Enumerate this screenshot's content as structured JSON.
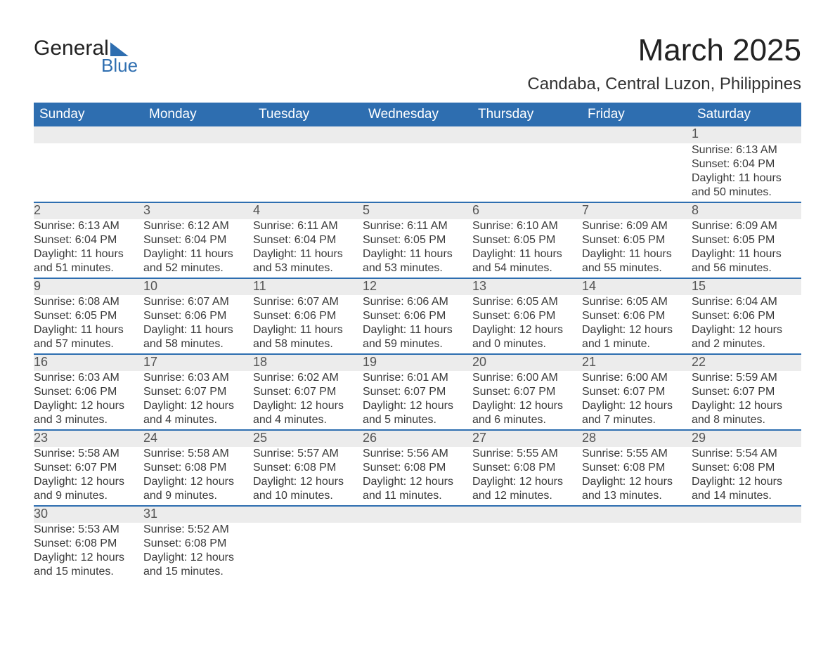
{
  "logo": {
    "line1": "General",
    "line2": "Blue"
  },
  "title": "March 2025",
  "location": "Candaba, Central Luzon, Philippines",
  "colors": {
    "header_blue": "#2e6eb0",
    "row_gray": "#ececec",
    "text": "#3a3a3a",
    "background": "#ffffff"
  },
  "typography": {
    "title_fontsize": 44,
    "location_fontsize": 24,
    "dayheader_fontsize": 19,
    "cell_fontsize": 16
  },
  "day_headers": [
    "Sunday",
    "Monday",
    "Tuesday",
    "Wednesday",
    "Thursday",
    "Friday",
    "Saturday"
  ],
  "weeks": [
    [
      null,
      null,
      null,
      null,
      null,
      null,
      {
        "n": "1",
        "sunrise": "6:13 AM",
        "sunset": "6:04 PM",
        "daylight": "11 hours and 50 minutes."
      }
    ],
    [
      {
        "n": "2",
        "sunrise": "6:13 AM",
        "sunset": "6:04 PM",
        "daylight": "11 hours and 51 minutes."
      },
      {
        "n": "3",
        "sunrise": "6:12 AM",
        "sunset": "6:04 PM",
        "daylight": "11 hours and 52 minutes."
      },
      {
        "n": "4",
        "sunrise": "6:11 AM",
        "sunset": "6:04 PM",
        "daylight": "11 hours and 53 minutes."
      },
      {
        "n": "5",
        "sunrise": "6:11 AM",
        "sunset": "6:05 PM",
        "daylight": "11 hours and 53 minutes."
      },
      {
        "n": "6",
        "sunrise": "6:10 AM",
        "sunset": "6:05 PM",
        "daylight": "11 hours and 54 minutes."
      },
      {
        "n": "7",
        "sunrise": "6:09 AM",
        "sunset": "6:05 PM",
        "daylight": "11 hours and 55 minutes."
      },
      {
        "n": "8",
        "sunrise": "6:09 AM",
        "sunset": "6:05 PM",
        "daylight": "11 hours and 56 minutes."
      }
    ],
    [
      {
        "n": "9",
        "sunrise": "6:08 AM",
        "sunset": "6:05 PM",
        "daylight": "11 hours and 57 minutes."
      },
      {
        "n": "10",
        "sunrise": "6:07 AM",
        "sunset": "6:06 PM",
        "daylight": "11 hours and 58 minutes."
      },
      {
        "n": "11",
        "sunrise": "6:07 AM",
        "sunset": "6:06 PM",
        "daylight": "11 hours and 58 minutes."
      },
      {
        "n": "12",
        "sunrise": "6:06 AM",
        "sunset": "6:06 PM",
        "daylight": "11 hours and 59 minutes."
      },
      {
        "n": "13",
        "sunrise": "6:05 AM",
        "sunset": "6:06 PM",
        "daylight": "12 hours and 0 minutes."
      },
      {
        "n": "14",
        "sunrise": "6:05 AM",
        "sunset": "6:06 PM",
        "daylight": "12 hours and 1 minute."
      },
      {
        "n": "15",
        "sunrise": "6:04 AM",
        "sunset": "6:06 PM",
        "daylight": "12 hours and 2 minutes."
      }
    ],
    [
      {
        "n": "16",
        "sunrise": "6:03 AM",
        "sunset": "6:06 PM",
        "daylight": "12 hours and 3 minutes."
      },
      {
        "n": "17",
        "sunrise": "6:03 AM",
        "sunset": "6:07 PM",
        "daylight": "12 hours and 4 minutes."
      },
      {
        "n": "18",
        "sunrise": "6:02 AM",
        "sunset": "6:07 PM",
        "daylight": "12 hours and 4 minutes."
      },
      {
        "n": "19",
        "sunrise": "6:01 AM",
        "sunset": "6:07 PM",
        "daylight": "12 hours and 5 minutes."
      },
      {
        "n": "20",
        "sunrise": "6:00 AM",
        "sunset": "6:07 PM",
        "daylight": "12 hours and 6 minutes."
      },
      {
        "n": "21",
        "sunrise": "6:00 AM",
        "sunset": "6:07 PM",
        "daylight": "12 hours and 7 minutes."
      },
      {
        "n": "22",
        "sunrise": "5:59 AM",
        "sunset": "6:07 PM",
        "daylight": "12 hours and 8 minutes."
      }
    ],
    [
      {
        "n": "23",
        "sunrise": "5:58 AM",
        "sunset": "6:07 PM",
        "daylight": "12 hours and 9 minutes."
      },
      {
        "n": "24",
        "sunrise": "5:58 AM",
        "sunset": "6:08 PM",
        "daylight": "12 hours and 9 minutes."
      },
      {
        "n": "25",
        "sunrise": "5:57 AM",
        "sunset": "6:08 PM",
        "daylight": "12 hours and 10 minutes."
      },
      {
        "n": "26",
        "sunrise": "5:56 AM",
        "sunset": "6:08 PM",
        "daylight": "12 hours and 11 minutes."
      },
      {
        "n": "27",
        "sunrise": "5:55 AM",
        "sunset": "6:08 PM",
        "daylight": "12 hours and 12 minutes."
      },
      {
        "n": "28",
        "sunrise": "5:55 AM",
        "sunset": "6:08 PM",
        "daylight": "12 hours and 13 minutes."
      },
      {
        "n": "29",
        "sunrise": "5:54 AM",
        "sunset": "6:08 PM",
        "daylight": "12 hours and 14 minutes."
      }
    ],
    [
      {
        "n": "30",
        "sunrise": "5:53 AM",
        "sunset": "6:08 PM",
        "daylight": "12 hours and 15 minutes."
      },
      {
        "n": "31",
        "sunrise": "5:52 AM",
        "sunset": "6:08 PM",
        "daylight": "12 hours and 15 minutes."
      },
      null,
      null,
      null,
      null,
      null
    ]
  ],
  "labels": {
    "sunrise": "Sunrise: ",
    "sunset": "Sunset: ",
    "daylight": "Daylight: "
  }
}
